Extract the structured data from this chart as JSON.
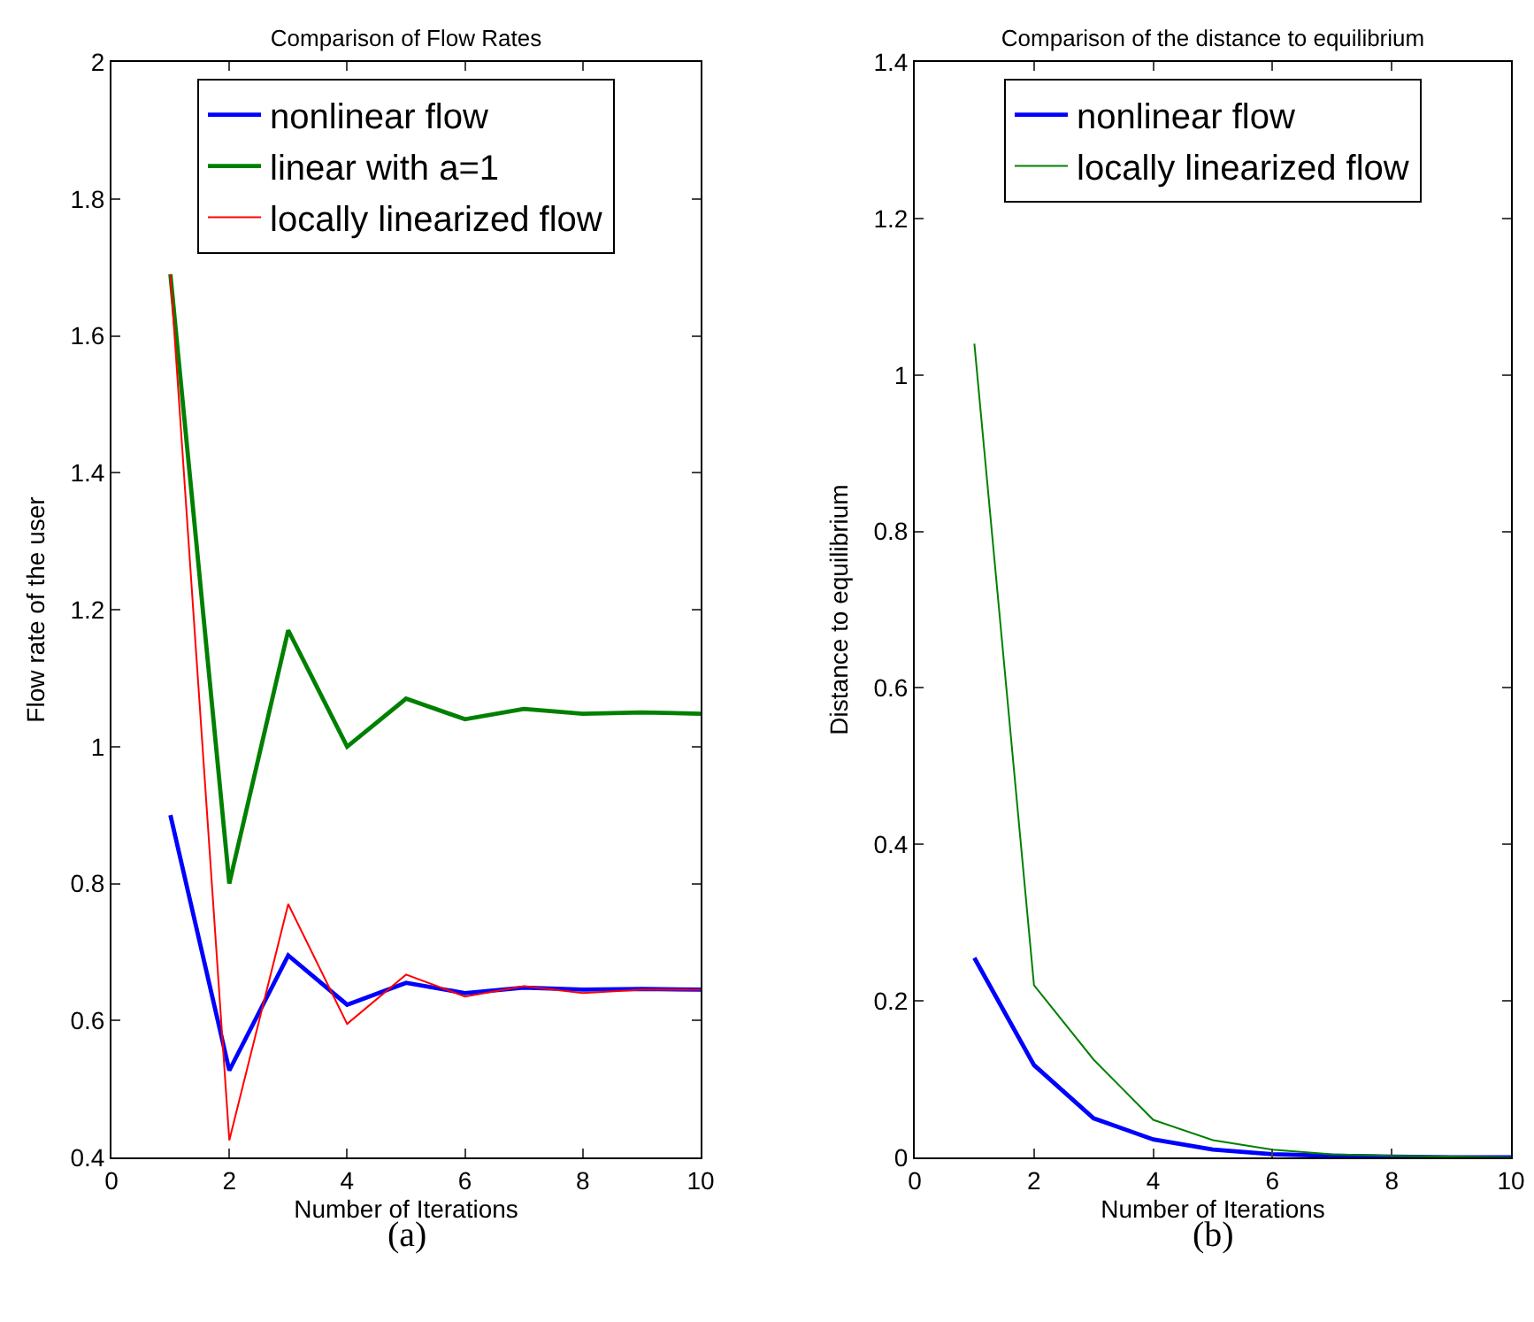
{
  "chart_data": [
    {
      "type": "line",
      "title": "Comparison of Flow Rates",
      "xlabel": "Number of Iterations",
      "ylabel": "Flow rate of the user",
      "annotations": [
        "(a)"
      ],
      "x": [
        1,
        2,
        3,
        4,
        5,
        6,
        7,
        8,
        9,
        10
      ],
      "series": [
        {
          "name": "nonlinear flow",
          "color": "#0000ff",
          "values": [
            0.9,
            0.527,
            0.695,
            0.623,
            0.655,
            0.64,
            0.648,
            0.645,
            0.646,
            0.645
          ]
        },
        {
          "name": "linear with a=1",
          "color": "#008000",
          "values": [
            1.69,
            0.8,
            1.17,
            1.0,
            1.07,
            1.04,
            1.055,
            1.048,
            1.05,
            1.048
          ]
        },
        {
          "name": "locally linearized flow",
          "color": "#ff0000",
          "values": [
            1.69,
            0.425,
            0.77,
            0.595,
            0.667,
            0.635,
            0.65,
            0.64,
            0.645,
            0.645
          ]
        }
      ],
      "xlim": [
        0,
        10
      ],
      "xticks": [
        0,
        2,
        4,
        6,
        8,
        10
      ],
      "ylim": [
        0.4,
        2
      ],
      "yticks": [
        0.4,
        0.6,
        0.8,
        1,
        1.2,
        1.4,
        1.6,
        1.8,
        2
      ],
      "grid": false,
      "legend": "top"
    },
    {
      "type": "line",
      "title": "Comparison of the distance to equilibrium",
      "xlabel": "Number of Iterations",
      "ylabel": "Distance to equilibrium",
      "annotations": [
        "(b)"
      ],
      "x": [
        1,
        2,
        3,
        4,
        5,
        6,
        7,
        8,
        9,
        10
      ],
      "series": [
        {
          "name": "nonlinear flow",
          "color": "#0000ff",
          "values": [
            0.255,
            0.118,
            0.05,
            0.023,
            0.01,
            0.004,
            0.002,
            0.001,
            0,
            0
          ]
        },
        {
          "name": "locally linearized flow",
          "color": "#008000",
          "values": [
            1.04,
            0.22,
            0.125,
            0.048,
            0.022,
            0.01,
            0.004,
            0.002,
            0.001,
            0
          ]
        }
      ],
      "xlim": [
        0,
        10
      ],
      "xticks": [
        0,
        2,
        4,
        6,
        8,
        10
      ],
      "ylim": [
        0,
        1.4
      ],
      "yticks": [
        0,
        0.2,
        0.4,
        0.6,
        0.8,
        1,
        1.2,
        1.4
      ],
      "grid": false,
      "legend": "top"
    }
  ]
}
